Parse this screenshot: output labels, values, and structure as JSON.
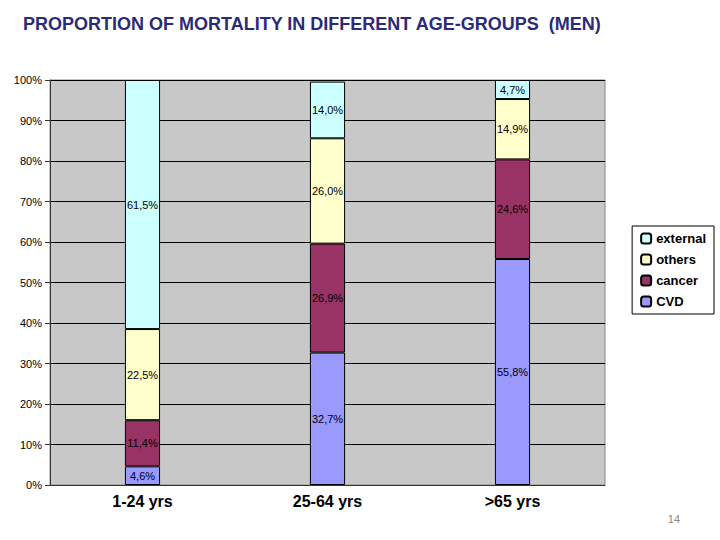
{
  "chart_data": {
    "type": "bar",
    "title": "PROPORTION OF MORTALITY IN DIFFERENT AGE-GROUPS  (MEN)",
    "categories": [
      "1-24 yrs",
      "25-64 yrs",
      ">65 yrs"
    ],
    "series": [
      {
        "name": "CVD",
        "color": "#9999ff",
        "values": [
          4.6,
          32.7,
          55.8
        ],
        "value_labels": [
          "4,6%",
          "32,7%",
          "55,8%"
        ]
      },
      {
        "name": "cancer",
        "color": "#993366",
        "values": [
          11.4,
          26.9,
          24.6
        ],
        "value_labels": [
          "11,4%",
          "26,9%",
          "24,6%"
        ]
      },
      {
        "name": "others",
        "color": "#ffffcc",
        "values": [
          22.5,
          26.0,
          14.9
        ],
        "value_labels": [
          "22,5%",
          "26,0%",
          "14,9%"
        ]
      },
      {
        "name": "external",
        "color": "#ccffff",
        "values": [
          61.5,
          14.0,
          4.7
        ],
        "value_labels": [
          "61,5%",
          "14,0%",
          "4,7%"
        ]
      }
    ],
    "ylim": [
      0,
      100
    ],
    "yticks": [
      {
        "value": 0,
        "label": "0%"
      },
      {
        "value": 10,
        "label": "10%"
      },
      {
        "value": 20,
        "label": "20%"
      },
      {
        "value": 30,
        "label": "30%"
      },
      {
        "value": 40,
        "label": "40%"
      },
      {
        "value": 50,
        "label": "50%"
      },
      {
        "value": 60,
        "label": "60%"
      },
      {
        "value": 70,
        "label": "70%"
      },
      {
        "value": 80,
        "label": "80%"
      },
      {
        "value": 90,
        "label": "90%"
      },
      {
        "value": 100,
        "label": "100%"
      }
    ],
    "stacked": true,
    "data_labels": true,
    "grid": true,
    "legend": "right",
    "annotations": [
      {
        "text": "14"
      }
    ]
  }
}
